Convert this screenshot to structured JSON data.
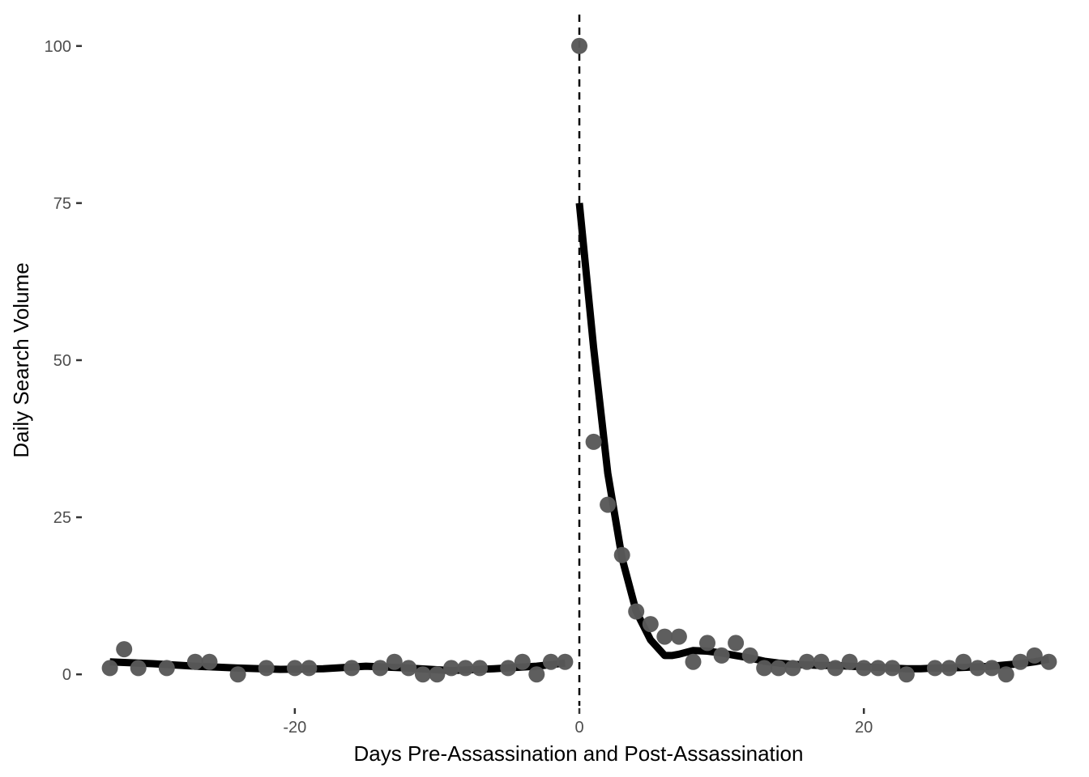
{
  "chart_data": {
    "type": "scatter",
    "title": "",
    "xlabel": "Days Pre-Assassination and Post-Assassination",
    "ylabel": "Daily Search Volume",
    "xlim": [
      -34.8,
      34.8
    ],
    "ylim": [
      -5,
      105
    ],
    "x_ticks": [
      -20,
      0,
      20
    ],
    "x_tick_labels": [
      "-20",
      "0",
      "20"
    ],
    "y_ticks": [
      0,
      25,
      50,
      75,
      100
    ],
    "y_tick_labels": [
      "0",
      "25",
      "50",
      "75",
      "100"
    ],
    "grid": false,
    "legend": "none",
    "reference_line": {
      "x": 0,
      "style": "dashed"
    },
    "colors": {
      "points": "#595959",
      "fit_line": "#000000",
      "reference_line": "#000000"
    },
    "points": {
      "x": [
        -33,
        -32,
        -31,
        -29,
        -27,
        -26,
        -24,
        -22,
        -20,
        -19,
        -16,
        -14,
        -13,
        -12,
        -11,
        -10,
        -9,
        -8,
        -7,
        -5,
        -4,
        -3,
        -2,
        -1,
        0,
        1,
        2,
        3,
        4,
        5,
        6,
        7,
        8,
        9,
        10,
        11,
        12,
        13,
        14,
        15,
        16,
        17,
        18,
        19,
        20,
        21,
        22,
        23,
        25,
        26,
        27,
        28,
        29,
        30,
        31,
        32,
        33
      ],
      "y": [
        1,
        4,
        1,
        1,
        2,
        2,
        0,
        1,
        1,
        1,
        1,
        1,
        2,
        1,
        0,
        0,
        1,
        1,
        1,
        1,
        2,
        0,
        2,
        2,
        100,
        37,
        27,
        19,
        10,
        8,
        6,
        6,
        2,
        5,
        3,
        5,
        3,
        1,
        1,
        1,
        2,
        2,
        1,
        2,
        1,
        1,
        1,
        0,
        1,
        1,
        2,
        1,
        1,
        0,
        2,
        3,
        2
      ]
    },
    "fit_pre": {
      "x": [
        -33,
        -30,
        -27,
        -24,
        -21,
        -18,
        -15,
        -12,
        -9,
        -6,
        -3,
        -1
      ],
      "y": [
        2.0,
        1.7,
        1.3,
        1.0,
        0.8,
        0.9,
        1.3,
        1.0,
        0.6,
        0.9,
        1.3,
        1.8
      ]
    },
    "fit_post": {
      "x": [
        0,
        1,
        2,
        3,
        4,
        5,
        6,
        6.5,
        7,
        8,
        9,
        10,
        11,
        12,
        13,
        14,
        15,
        16,
        17,
        18,
        19,
        20,
        21,
        22,
        23,
        24,
        25,
        26,
        27,
        28,
        29,
        30,
        31,
        32,
        33
      ],
      "y": [
        75,
        52,
        32,
        18.5,
        10,
        5.5,
        3.0,
        3.0,
        3.2,
        3.8,
        3.7,
        3.4,
        3.0,
        2.6,
        2.1,
        1.8,
        1.6,
        1.5,
        1.4,
        1.4,
        1.3,
        1.2,
        1.1,
        1.0,
        0.9,
        0.9,
        1.0,
        1.0,
        1.1,
        1.2,
        1.3,
        1.5,
        1.7,
        2.0,
        2.4
      ]
    }
  }
}
